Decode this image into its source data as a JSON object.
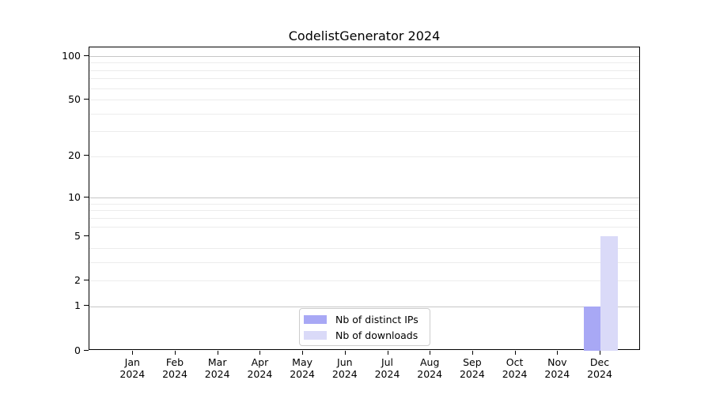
{
  "figure": {
    "background": "#ffffff"
  },
  "chart_data": {
    "type": "bar",
    "title": "CodelistGenerator 2024",
    "categories": [
      "Jan 2024",
      "Feb 2024",
      "Mar 2024",
      "Apr 2024",
      "May 2024",
      "Jun 2024",
      "Jul 2024",
      "Aug 2024",
      "Sep 2024",
      "Oct 2024",
      "Nov 2024",
      "Dec 2024"
    ],
    "series": [
      {
        "name": "Nb of distinct IPs",
        "color": "#a8a8f5",
        "values": [
          0,
          0,
          0,
          0,
          0,
          0,
          0,
          0,
          0,
          0,
          0,
          1
        ]
      },
      {
        "name": "Nb of downloads",
        "color": "#dadaf8",
        "values": [
          0,
          0,
          0,
          0,
          0,
          0,
          0,
          0,
          0,
          0,
          0,
          5
        ]
      }
    ],
    "xlabel": "",
    "ylabel": "",
    "yscale": "log1p",
    "ylim": [
      0,
      100
    ],
    "y_ticks": [
      0,
      1,
      2,
      5,
      10,
      20,
      50,
      100
    ],
    "y_major_gridlines": [
      1,
      10,
      100
    ],
    "y_minor_gridlines": [
      2,
      3,
      4,
      6,
      7,
      8,
      9,
      20,
      30,
      40,
      50,
      60,
      70,
      80,
      90
    ],
    "grid": true,
    "legend": {
      "position": "lower center",
      "entries": [
        "Nb of distinct IPs",
        "Nb of downloads"
      ]
    },
    "colors": {
      "axis": "#000000",
      "major_grid": "#c6c6c6",
      "minor_grid": "#ececec",
      "legend_border": "#cccccc",
      "legend_background": "#ffffff",
      "text": "#000000"
    }
  }
}
